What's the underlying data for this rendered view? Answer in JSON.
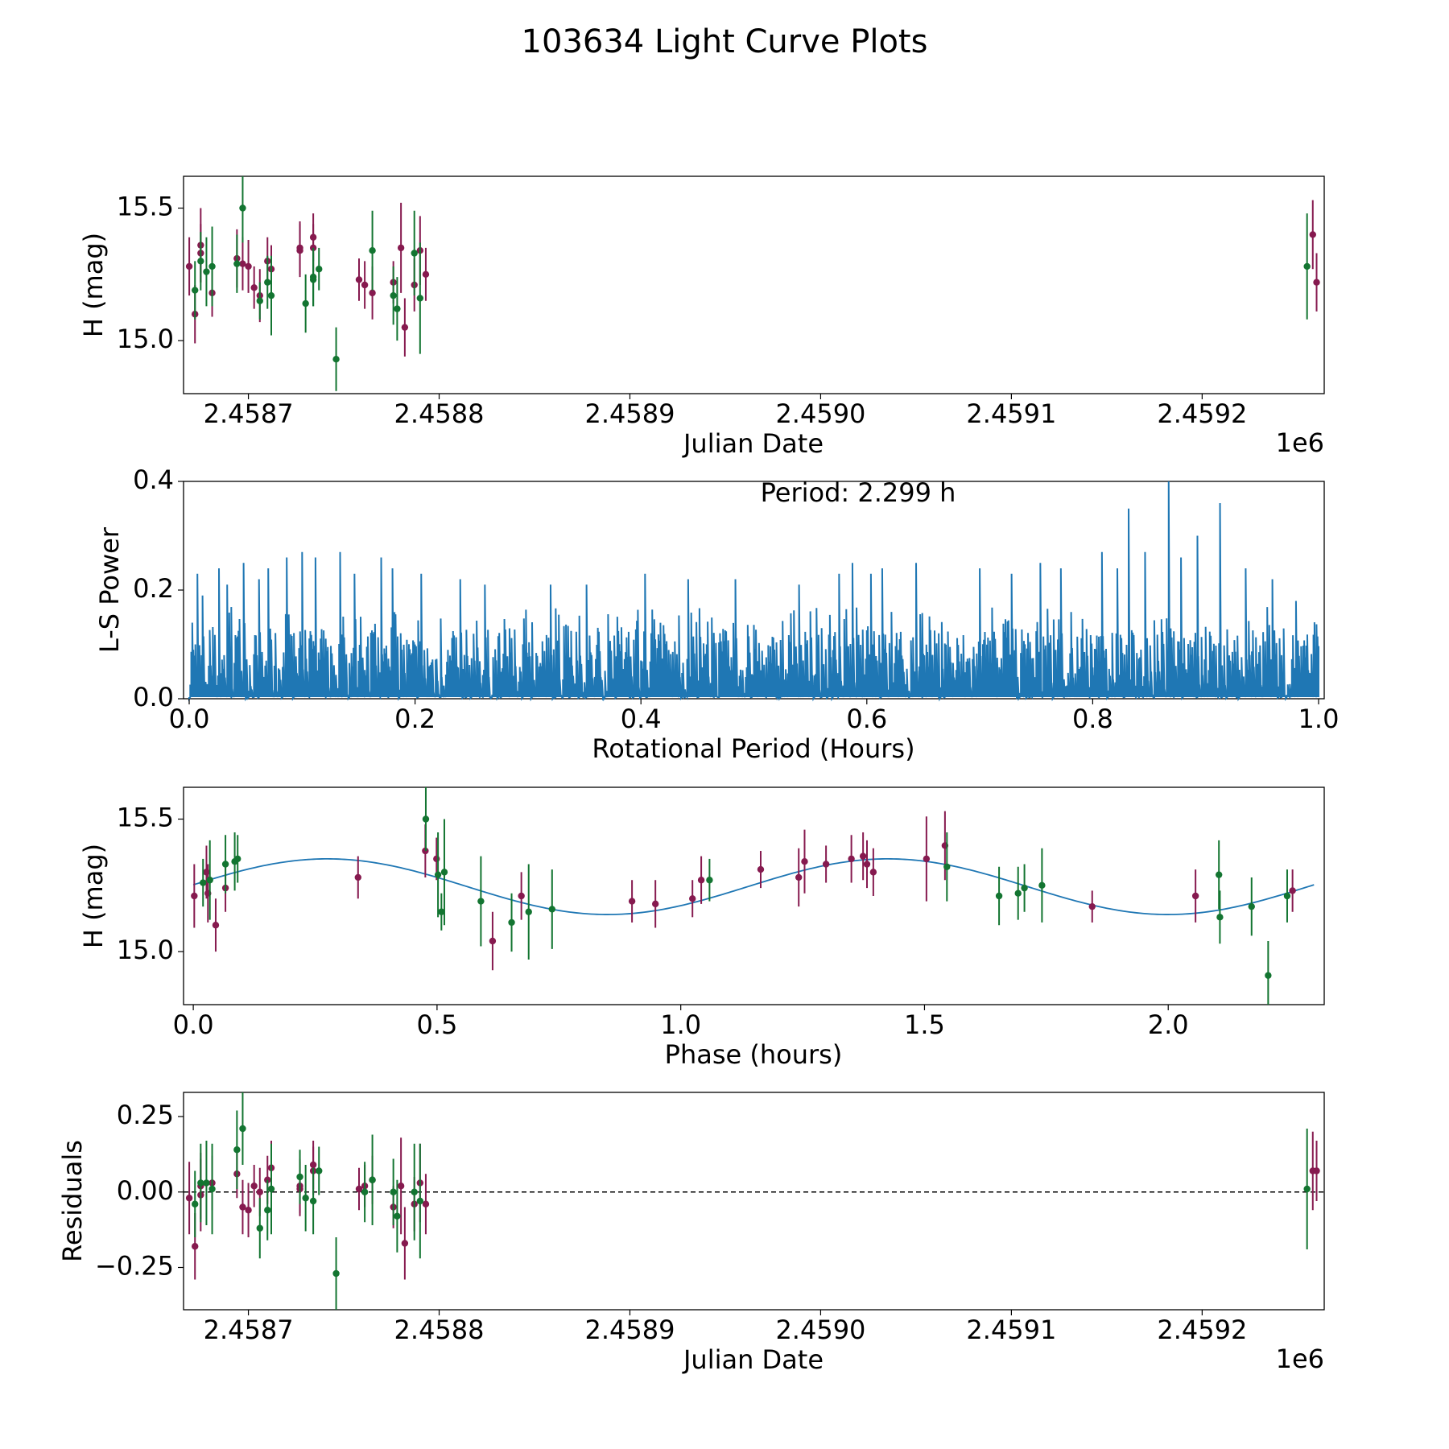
{
  "title": "103634 Light Curve Plots",
  "colors": {
    "filter_a": "#861a4f",
    "filter_b": "#137531",
    "periodogram": "#1f77b4",
    "fit": "#1f77b4",
    "axis": "#000000"
  },
  "chart_data": [
    {
      "id": "lightcurve",
      "type": "scatter",
      "xlabel": "Julian Date",
      "ylabel": "H (mag)",
      "x_offset_label": "1e6",
      "x_unit_scale": 1000000,
      "xlim": [
        2.458666,
        2.459264
      ],
      "ylim": [
        14.8,
        15.62
      ],
      "xticks": [
        2.4587,
        2.4588,
        2.4589,
        2.459,
        2.4591,
        2.4592
      ],
      "xtick_labels": [
        "2.4587",
        "2.4588",
        "2.4589",
        "2.4590",
        "2.4591",
        "2.4592"
      ],
      "yticks": [
        15.0,
        15.5
      ],
      "ytick_labels": [
        "15.0",
        "15.5"
      ],
      "series": [
        {
          "name": "filter_a",
          "color_key": "filter_a",
          "points": [
            [
              2.458669,
              15.28,
              0.11
            ],
            [
              2.458672,
              15.1,
              0.11
            ],
            [
              2.458675,
              15.33,
              0.11
            ],
            [
              2.458675,
              15.36,
              0.14
            ],
            [
              2.458681,
              15.18,
              0.09
            ],
            [
              2.458694,
              15.31,
              0.11
            ],
            [
              2.458697,
              15.29,
              0.1
            ],
            [
              2.4587,
              15.28,
              0.1
            ],
            [
              2.458703,
              15.2,
              0.08
            ],
            [
              2.458706,
              15.17,
              0.1
            ],
            [
              2.45871,
              15.3,
              0.09
            ],
            [
              2.458712,
              15.27,
              0.09
            ],
            [
              2.458727,
              15.34,
              0.1
            ],
            [
              2.458727,
              15.35,
              0.1
            ],
            [
              2.458734,
              15.39,
              0.09
            ],
            [
              2.458734,
              15.35,
              0.09
            ],
            [
              2.458758,
              15.23,
              0.08
            ],
            [
              2.458761,
              15.21,
              0.09
            ],
            [
              2.458765,
              15.18,
              0.1
            ],
            [
              2.458776,
              15.22,
              0.08
            ],
            [
              2.45878,
              15.35,
              0.17
            ],
            [
              2.458782,
              15.05,
              0.11
            ],
            [
              2.458787,
              15.21,
              0.1
            ],
            [
              2.45879,
              15.34,
              0.13
            ],
            [
              2.458793,
              15.25,
              0.1
            ],
            [
              2.459258,
              15.4,
              0.13
            ],
            [
              2.45926,
              15.22,
              0.11
            ]
          ]
        },
        {
          "name": "filter_b",
          "color_key": "filter_b",
          "points": [
            [
              2.458672,
              15.19,
              0.11
            ],
            [
              2.458675,
              15.3,
              0.11
            ],
            [
              2.458678,
              15.26,
              0.13
            ],
            [
              2.458681,
              15.28,
              0.15
            ],
            [
              2.458694,
              15.29,
              0.11
            ],
            [
              2.458697,
              15.5,
              0.13
            ],
            [
              2.458706,
              15.15,
              0.07
            ],
            [
              2.45871,
              15.22,
              0.1
            ],
            [
              2.458712,
              15.17,
              0.15
            ],
            [
              2.45873,
              15.14,
              0.11
            ],
            [
              2.458734,
              15.24,
              0.11
            ],
            [
              2.458734,
              15.23,
              0.1
            ],
            [
              2.458737,
              15.27,
              0.08
            ],
            [
              2.458746,
              14.93,
              0.12
            ],
            [
              2.458765,
              15.34,
              0.15
            ],
            [
              2.458776,
              15.17,
              0.11
            ],
            [
              2.458778,
              15.12,
              0.12
            ],
            [
              2.458787,
              15.33,
              0.16
            ],
            [
              2.45879,
              15.16,
              0.21
            ],
            [
              2.459255,
              15.28,
              0.2
            ]
          ]
        }
      ]
    },
    {
      "id": "periodogram",
      "type": "line",
      "xlabel": "Rotational Period (Hours)",
      "ylabel": "L-S Power",
      "annotation": "Period: 2.299 h",
      "xlim": [
        -0.005,
        1.005
      ],
      "ylim": [
        0.0,
        0.4
      ],
      "xticks": [
        0.0,
        0.2,
        0.4,
        0.6,
        0.8,
        1.0
      ],
      "xtick_labels": [
        "0.0",
        "0.2",
        "0.4",
        "0.6",
        "0.8",
        "1.0"
      ],
      "yticks": [
        0.0,
        0.2,
        0.4
      ],
      "ytick_labels": [
        "0.0",
        "0.2",
        "0.4"
      ],
      "x_range": [
        0.0,
        1.0
      ],
      "n_samples": 1100,
      "noise_baseline": 0.13,
      "noise_seed": 7,
      "peaks": [
        [
          0.003,
          0.14
        ],
        [
          0.007,
          0.23
        ],
        [
          0.012,
          0.19
        ],
        [
          0.026,
          0.24
        ],
        [
          0.034,
          0.21
        ],
        [
          0.048,
          0.25
        ],
        [
          0.062,
          0.22
        ],
        [
          0.07,
          0.24
        ],
        [
          0.086,
          0.26
        ],
        [
          0.1,
          0.27
        ],
        [
          0.112,
          0.26
        ],
        [
          0.134,
          0.27
        ],
        [
          0.146,
          0.23
        ],
        [
          0.17,
          0.26
        ],
        [
          0.18,
          0.24
        ],
        [
          0.205,
          0.23
        ],
        [
          0.24,
          0.22
        ],
        [
          0.262,
          0.21
        ],
        [
          0.32,
          0.21
        ],
        [
          0.352,
          0.21
        ],
        [
          0.404,
          0.23
        ],
        [
          0.442,
          0.22
        ],
        [
          0.484,
          0.22
        ],
        [
          0.54,
          0.21
        ],
        [
          0.575,
          0.23
        ],
        [
          0.587,
          0.25
        ],
        [
          0.604,
          0.23
        ],
        [
          0.614,
          0.24
        ],
        [
          0.644,
          0.25
        ],
        [
          0.7,
          0.24
        ],
        [
          0.728,
          0.23
        ],
        [
          0.754,
          0.25
        ],
        [
          0.772,
          0.24
        ],
        [
          0.808,
          0.27
        ],
        [
          0.822,
          0.24
        ],
        [
          0.832,
          0.35
        ],
        [
          0.846,
          0.27
        ],
        [
          0.867,
          0.4
        ],
        [
          0.878,
          0.26
        ],
        [
          0.893,
          0.3
        ],
        [
          0.913,
          0.36
        ],
        [
          0.935,
          0.24
        ],
        [
          0.959,
          0.22
        ],
        [
          0.98,
          0.18
        ]
      ]
    },
    {
      "id": "phased",
      "type": "scatter",
      "xlabel": "Phase (hours)",
      "ylabel": "H (mag)",
      "xlim": [
        -0.02,
        2.32
      ],
      "ylim": [
        14.8,
        15.62
      ],
      "xticks": [
        0.0,
        0.5,
        1.0,
        1.5,
        2.0
      ],
      "xtick_labels": [
        "0.0",
        "0.5",
        "1.0",
        "1.5",
        "2.0"
      ],
      "yticks": [
        15.0,
        15.5
      ],
      "ytick_labels": [
        "15.0",
        "15.5"
      ],
      "fit": {
        "mean": 15.245,
        "amplitude": 0.105,
        "period": 1.1495,
        "peak_phase": 0.275,
        "x_range": [
          0.0,
          2.299
        ]
      },
      "series": [
        {
          "name": "filter_a",
          "color_key": "filter_a",
          "points": [
            [
              0.002,
              15.21,
              0.12
            ],
            [
              0.027,
              15.3,
              0.1
            ],
            [
              0.03,
              15.22,
              0.11
            ],
            [
              0.046,
              15.1,
              0.1
            ],
            [
              0.066,
              15.24,
              0.09
            ],
            [
              0.338,
              15.28,
              0.08
            ],
            [
              0.476,
              15.38,
              0.1
            ],
            [
              0.499,
              15.35,
              0.08
            ],
            [
              0.614,
              15.04,
              0.11
            ],
            [
              0.673,
              15.21,
              0.09
            ],
            [
              0.9,
              15.19,
              0.08
            ],
            [
              0.948,
              15.18,
              0.09
            ],
            [
              1.024,
              15.2,
              0.07
            ],
            [
              1.042,
              15.27,
              0.09
            ],
            [
              1.164,
              15.31,
              0.07
            ],
            [
              1.242,
              15.28,
              0.11
            ],
            [
              1.254,
              15.34,
              0.12
            ],
            [
              1.298,
              15.33,
              0.07
            ],
            [
              1.35,
              15.35,
              0.09
            ],
            [
              1.374,
              15.36,
              0.09
            ],
            [
              1.382,
              15.33,
              0.09
            ],
            [
              1.395,
              15.3,
              0.09
            ],
            [
              1.504,
              15.35,
              0.16
            ],
            [
              1.542,
              15.4,
              0.13
            ],
            [
              1.844,
              15.17,
              0.06
            ],
            [
              2.056,
              15.21,
              0.1
            ],
            [
              2.255,
              15.23,
              0.08
            ]
          ]
        },
        {
          "name": "filter_b",
          "color_key": "filter_b",
          "points": [
            [
              0.02,
              15.26,
              0.09
            ],
            [
              0.034,
              15.27,
              0.15
            ],
            [
              0.066,
              15.33,
              0.11
            ],
            [
              0.085,
              15.34,
              0.11
            ],
            [
              0.091,
              15.35,
              0.09
            ],
            [
              0.477,
              15.5,
              0.12
            ],
            [
              0.502,
              15.29,
              0.16
            ],
            [
              0.515,
              15.3,
              0.2
            ],
            [
              0.509,
              15.15,
              0.07
            ],
            [
              0.59,
              15.19,
              0.17
            ],
            [
              0.653,
              15.11,
              0.11
            ],
            [
              0.688,
              15.15,
              0.18
            ],
            [
              0.736,
              15.16,
              0.15
            ],
            [
              1.059,
              15.27,
              0.08
            ],
            [
              1.546,
              15.32,
              0.13
            ],
            [
              1.653,
              15.21,
              0.11
            ],
            [
              1.692,
              15.22,
              0.1
            ],
            [
              1.705,
              15.24,
              0.09
            ],
            [
              1.741,
              15.25,
              0.14
            ],
            [
              2.104,
              15.29,
              0.13
            ],
            [
              2.106,
              15.13,
              0.1
            ],
            [
              2.171,
              15.17,
              0.11
            ],
            [
              2.205,
              14.91,
              0.13
            ],
            [
              2.244,
              15.21,
              0.1
            ]
          ]
        }
      ]
    },
    {
      "id": "residuals",
      "type": "scatter",
      "xlabel": "Julian Date",
      "ylabel": "Residuals",
      "x_offset_label": "1e6",
      "x_unit_scale": 1000000,
      "xlim": [
        2.458666,
        2.459264
      ],
      "ylim": [
        -0.39,
        0.33
      ],
      "xticks": [
        2.4587,
        2.4588,
        2.4589,
        2.459,
        2.4591,
        2.4592
      ],
      "xtick_labels": [
        "2.4587",
        "2.4588",
        "2.4589",
        "2.4590",
        "2.4591",
        "2.4592"
      ],
      "yticks": [
        -0.25,
        0.0,
        0.25
      ],
      "ytick_labels": [
        "−0.25",
        "0.00",
        "0.25"
      ],
      "reference_line": 0.0,
      "series": [
        {
          "name": "filter_a",
          "color_key": "filter_a",
          "points": [
            [
              2.458669,
              -0.02,
              0.12
            ],
            [
              2.458672,
              -0.18,
              0.11
            ],
            [
              2.458675,
              0.02,
              0.11
            ],
            [
              2.458675,
              -0.01,
              0.12
            ],
            [
              2.458681,
              0.03,
              0.09
            ],
            [
              2.458694,
              0.06,
              0.08
            ],
            [
              2.458697,
              -0.05,
              0.09
            ],
            [
              2.4587,
              -0.06,
              0.09
            ],
            [
              2.458703,
              0.02,
              0.07
            ],
            [
              2.458706,
              0.0,
              0.08
            ],
            [
              2.45871,
              0.04,
              0.08
            ],
            [
              2.458712,
              0.08,
              0.09
            ],
            [
              2.458727,
              0.01,
              0.09
            ],
            [
              2.458727,
              0.02,
              0.09
            ],
            [
              2.458734,
              0.09,
              0.08
            ],
            [
              2.458734,
              0.07,
              0.08
            ],
            [
              2.458758,
              0.01,
              0.07
            ],
            [
              2.458761,
              0.02,
              0.07
            ],
            [
              2.458765,
              0.04,
              0.08
            ],
            [
              2.458776,
              -0.05,
              0.07
            ],
            [
              2.45878,
              0.02,
              0.16
            ],
            [
              2.458782,
              -0.17,
              0.12
            ],
            [
              2.458787,
              -0.04,
              0.09
            ],
            [
              2.45879,
              0.03,
              0.13
            ],
            [
              2.458793,
              -0.04,
              0.1
            ],
            [
              2.459258,
              0.07,
              0.13
            ],
            [
              2.45926,
              0.07,
              0.1
            ]
          ]
        },
        {
          "name": "filter_b",
          "color_key": "filter_b",
          "points": [
            [
              2.458672,
              -0.04,
              0.11
            ],
            [
              2.458675,
              0.03,
              0.13
            ],
            [
              2.458678,
              0.03,
              0.14
            ],
            [
              2.458681,
              0.01,
              0.15
            ],
            [
              2.458694,
              0.14,
              0.13
            ],
            [
              2.458697,
              0.21,
              0.12
            ],
            [
              2.458706,
              -0.12,
              0.1
            ],
            [
              2.45871,
              -0.06,
              0.1
            ],
            [
              2.458712,
              0.01,
              0.15
            ],
            [
              2.458727,
              0.05,
              0.09
            ],
            [
              2.45873,
              -0.02,
              0.11
            ],
            [
              2.458734,
              -0.03,
              0.11
            ],
            [
              2.458737,
              0.07,
              0.08
            ],
            [
              2.458746,
              -0.27,
              0.12
            ],
            [
              2.458761,
              0.0,
              0.1
            ],
            [
              2.458765,
              0.04,
              0.15
            ],
            [
              2.458776,
              0.0,
              0.11
            ],
            [
              2.458778,
              -0.08,
              0.12
            ],
            [
              2.458787,
              0.0,
              0.16
            ],
            [
              2.45879,
              -0.03,
              0.19
            ],
            [
              2.459255,
              0.01,
              0.2
            ]
          ]
        }
      ]
    }
  ]
}
